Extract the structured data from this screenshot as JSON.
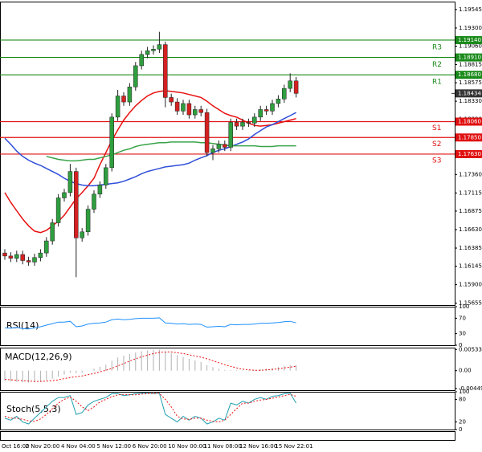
{
  "chart_data": [
    {
      "type": "candlestick",
      "categories": [
        "Oct 16:00",
        null,
        null,
        null,
        "2 Nov 20:00",
        null,
        null,
        null,
        null,
        null,
        "4 Nov 04:00",
        null,
        null,
        null,
        null,
        null,
        "5 Nov 12:00",
        null,
        null,
        null,
        null,
        null,
        "6 Nov 20:00",
        null,
        null,
        null,
        null,
        null,
        "10 Nov 00:00",
        null,
        null,
        null,
        null,
        null,
        "11 Nov 08:00",
        null,
        null,
        null,
        null,
        null,
        "12 Nov 16:00",
        null,
        null,
        null,
        null,
        null,
        "15 Nov 22:01",
        null,
        null,
        null
      ],
      "open": [
        1.1632,
        1.1628,
        1.1625,
        1.163,
        1.1622,
        1.162,
        1.1626,
        1.1632,
        1.1648,
        1.1672,
        1.1705,
        1.1712,
        1.174,
        1.1652,
        1.166,
        1.169,
        1.171,
        1.1722,
        1.1745,
        1.1812,
        1.184,
        1.1832,
        1.1852,
        1.188,
        1.1895,
        1.19,
        1.1902,
        1.1908,
        1.1838,
        1.1832,
        1.182,
        1.183,
        1.1815,
        1.1822,
        1.1818,
        1.1765,
        1.177,
        1.1776,
        1.1772,
        1.1805,
        1.18,
        1.1805,
        1.1804,
        1.1812,
        1.1822,
        1.182,
        1.183,
        1.1836,
        1.185,
        1.186
      ],
      "high": [
        1.1637,
        1.1633,
        1.1635,
        1.1635,
        1.1627,
        1.1631,
        1.1637,
        1.1653,
        1.1677,
        1.171,
        1.1717,
        1.175,
        1.1745,
        1.1665,
        1.1695,
        1.1715,
        1.1727,
        1.175,
        1.1817,
        1.1848,
        1.1845,
        1.1857,
        1.1885,
        1.19,
        1.1905,
        1.1907,
        1.1925,
        1.1912,
        1.1843,
        1.1837,
        1.1835,
        1.1835,
        1.1827,
        1.1827,
        1.1823,
        1.1775,
        1.1781,
        1.1781,
        1.181,
        1.181,
        1.181,
        1.181,
        1.1817,
        1.1827,
        1.1827,
        1.1835,
        1.1841,
        1.1855,
        1.187,
        1.1865
      ],
      "low": [
        1.1623,
        1.162,
        1.162,
        1.1617,
        1.1615,
        1.1615,
        1.1621,
        1.1627,
        1.1643,
        1.1667,
        1.17,
        1.1707,
        1.16,
        1.1647,
        1.1655,
        1.1685,
        1.1705,
        1.1717,
        1.174,
        1.1807,
        1.1827,
        1.1827,
        1.1847,
        1.1875,
        1.189,
        1.1895,
        1.1897,
        1.1825,
        1.1827,
        1.1815,
        1.1815,
        1.181,
        1.181,
        1.1813,
        1.176,
        1.1755,
        1.1765,
        1.1767,
        1.1767,
        1.1795,
        1.1795,
        1.1799,
        1.1799,
        1.1807,
        1.1815,
        1.1815,
        1.1825,
        1.1831,
        1.1845,
        1.1838
      ],
      "close": [
        1.1628,
        1.1625,
        1.163,
        1.1622,
        1.162,
        1.1626,
        1.1632,
        1.1648,
        1.1672,
        1.1705,
        1.1712,
        1.174,
        1.1652,
        1.166,
        1.169,
        1.171,
        1.1722,
        1.1745,
        1.1812,
        1.184,
        1.1832,
        1.1852,
        1.188,
        1.1895,
        1.19,
        1.1902,
        1.1908,
        1.1838,
        1.1832,
        1.182,
        1.183,
        1.1815,
        1.1822,
        1.1818,
        1.1765,
        1.177,
        1.1776,
        1.1772,
        1.1805,
        1.18,
        1.1805,
        1.1804,
        1.1812,
        1.1822,
        1.182,
        1.183,
        1.1836,
        1.185,
        1.186,
        1.18434
      ],
      "up_color": "#2e9e3e",
      "down_color": "#d42020",
      "series": [
        {
          "color": "#e81010",
          "values": [
            1.1712,
            1.1699,
            1.1688,
            1.1677,
            1.1668,
            1.1661,
            1.1659,
            1.1662,
            1.1668,
            1.1674,
            1.1682,
            1.1693,
            1.1704,
            1.1712,
            1.1721,
            1.1731,
            1.1749,
            1.1765,
            1.1781,
            1.1795,
            1.1808,
            1.1818,
            1.1827,
            1.1834,
            1.184,
            1.1844,
            1.1846,
            1.1847,
            1.1846,
            1.1845,
            1.1844,
            1.1842,
            1.184,
            1.1838,
            1.1833,
            1.1827,
            1.1822,
            1.1817,
            1.1814,
            1.1812,
            1.1808,
            1.1804,
            1.1801,
            1.18,
            1.1801,
            1.1802,
            1.1804,
            1.1806,
            1.1808,
            1.181
          ]
        },
        {
          "color": "#2f4fd8",
          "values": [
            1.1784,
            1.1776,
            1.1767,
            1.176,
            1.1755,
            1.1751,
            1.1748,
            1.1744,
            1.174,
            1.1736,
            1.1731,
            1.1727,
            1.1724,
            1.1722,
            1.1721,
            1.1721,
            1.1722,
            1.1723,
            1.1724,
            1.1725,
            1.1727,
            1.173,
            1.1733,
            1.1737,
            1.174,
            1.1742,
            1.1744,
            1.1746,
            1.1747,
            1.1748,
            1.1749,
            1.1751,
            1.1755,
            1.1758,
            1.1761,
            1.1765,
            1.1768,
            1.177,
            1.1773,
            1.1776,
            1.1779,
            1.1783,
            1.1789,
            1.1794,
            1.1799,
            1.1802,
            1.1806,
            1.181,
            1.1814,
            1.1818
          ]
        },
        {
          "color": "#3aa34a",
          "values": [
            null,
            null,
            null,
            null,
            null,
            null,
            null,
            1.176,
            1.1758,
            1.1756,
            1.1755,
            1.1754,
            1.1754,
            1.1755,
            1.1756,
            1.1756,
            1.1758,
            1.176,
            1.1762,
            1.1765,
            1.1768,
            1.177,
            1.1773,
            1.1775,
            1.1776,
            1.1777,
            1.1778,
            1.1778,
            1.1779,
            1.1779,
            1.1779,
            1.1779,
            1.1779,
            1.1778,
            1.1778,
            1.1777,
            1.1776,
            1.1775,
            1.1774,
            1.1774,
            1.1774,
            1.1774,
            1.1774,
            1.1773,
            1.1773,
            1.1773,
            1.1774,
            1.1774,
            1.1774,
            1.1774
          ]
        }
      ],
      "levels": [
        {
          "name": "R3",
          "value": 1.1914,
          "label": "1.19140",
          "color": "#1a8a1a"
        },
        {
          "name": "R2",
          "value": 1.1891,
          "label": "1.18910",
          "color": "#1a8a1a"
        },
        {
          "name": "R1",
          "value": 1.1868,
          "label": "1.18680",
          "color": "#1a8a1a"
        },
        {
          "name": "S1",
          "value": 1.1806,
          "label": "1.18060",
          "color": "#e01010"
        },
        {
          "name": "S2",
          "value": 1.1785,
          "label": "1.17850",
          "color": "#e01010"
        },
        {
          "name": "S3",
          "value": 1.1763,
          "label": "1.17630",
          "color": "#e01010"
        }
      ],
      "last": 1.18434,
      "ylim": [
        1.1563,
        1.1965
      ],
      "yticks": [
        1.19545,
        {
          "value": 1.193,
          "label": "1.19300"
        },
        {
          "value": 1.1906,
          "label": "1.19060"
        },
        1.18815,
        1.18575,
        {
          "value": 1.1833,
          "label": "1.18330"
        },
        {
          "value": 1.1809,
          "label": "1.18090"
        },
        1.17845,
        {
          "value": 1.176,
          "label": "1.17600"
        },
        {
          "value": 1.1736,
          "label": "1.17360"
        },
        1.17115,
        1.16875,
        {
          "value": 1.1663,
          "label": "1.16630"
        },
        1.16385,
        1.16145,
        {
          "value": 1.159,
          "label": "1.15900"
        },
        1.15655
      ]
    },
    {
      "type": "line",
      "title": "RSI(14)",
      "ylim": [
        0,
        100
      ],
      "yticks": [
        100,
        70,
        30,
        0
      ],
      "series": [
        {
          "color": "#1e90ff",
          "values": [
            45,
            44,
            46,
            43,
            42,
            45,
            48,
            52,
            56,
            60,
            60,
            62,
            48,
            50,
            55,
            57,
            58,
            60,
            66,
            68,
            66,
            67,
            69,
            70,
            70,
            70,
            71,
            58,
            57,
            55,
            56,
            54,
            55,
            54,
            47,
            48,
            49,
            48,
            54,
            53,
            54,
            54,
            55,
            57,
            57,
            58,
            59,
            61,
            62,
            58
          ]
        }
      ]
    },
    {
      "type": "bar",
      "title": "MACD(12,26,9)",
      "ylim": [
        -0.0049,
        0.0058
      ],
      "yticks": [
        0.005338,
        {
          "value": 0,
          "label": "0.00"
        },
        -0.004497
      ],
      "color": "#b0b0b0",
      "values": [
        -0.0025,
        -0.0027,
        -0.0028,
        -0.0029,
        -0.003,
        -0.0029,
        -0.0027,
        -0.0024,
        -0.002,
        -0.0015,
        -0.001,
        -0.0005,
        -0.0006,
        -0.0005,
        0,
        0.0005,
        0.001,
        0.0015,
        0.0025,
        0.0033,
        0.0038,
        0.0042,
        0.0046,
        0.0049,
        0.0051,
        0.0052,
        0.0053,
        0.0048,
        0.0044,
        0.0039,
        0.0035,
        0.003,
        0.0026,
        0.0022,
        0.0014,
        0.0009,
        0.0005,
        0.0002,
        0.0002,
        0.0001,
        0.0001,
        0.0001,
        0.0002,
        0.0004,
        0.0005,
        0.0007,
        0.0009,
        0.0012,
        0.0014,
        0.0014
      ],
      "series": [
        {
          "color": "#e81010",
          "dashed": true,
          "values": [
            -0.0022,
            -0.0023,
            -0.0024,
            -0.0025,
            -0.0026,
            -0.0027,
            -0.0027,
            -0.0026,
            -0.0025,
            -0.0023,
            -0.002,
            -0.0017,
            -0.0015,
            -0.0013,
            -0.001,
            -0.0007,
            -0.0003,
            0.0001,
            0.0006,
            0.0012,
            0.0018,
            0.0024,
            0.003,
            0.0035,
            0.0039,
            0.0043,
            0.0046,
            0.0047,
            0.0047,
            0.0045,
            0.0043,
            0.004,
            0.0037,
            0.0034,
            0.003,
            0.0025,
            0.002,
            0.0015,
            0.0011,
            0.0007,
            0.0004,
            0.0002,
            0.0001,
            0.0001,
            0.0002,
            0.0003,
            0.0005,
            0.0007,
            0.0009,
            0.0011
          ]
        }
      ]
    },
    {
      "type": "line",
      "title": "Stoch(5,5,3)",
      "ylim": [
        0,
        100
      ],
      "yticks": [
        100,
        80,
        20,
        0
      ],
      "series": [
        {
          "color": "#20a0b0",
          "values": [
            30,
            25,
            35,
            20,
            15,
            30,
            45,
            60,
            75,
            85,
            85,
            90,
            40,
            45,
            65,
            75,
            80,
            85,
            95,
            95,
            90,
            92,
            95,
            96,
            96,
            95,
            96,
            40,
            30,
            20,
            35,
            25,
            35,
            30,
            15,
            20,
            30,
            25,
            70,
            65,
            75,
            70,
            80,
            85,
            80,
            88,
            90,
            95,
            96,
            70
          ]
        },
        {
          "color": "#e81010",
          "dashed": true,
          "values": [
            35,
            30,
            30,
            27,
            23,
            22,
            28,
            40,
            55,
            70,
            80,
            86,
            75,
            60,
            50,
            60,
            73,
            80,
            87,
            92,
            93,
            92,
            92,
            94,
            95,
            96,
            96,
            80,
            60,
            35,
            28,
            27,
            30,
            30,
            25,
            22,
            20,
            25,
            40,
            55,
            70,
            70,
            75,
            78,
            80,
            83,
            86,
            90,
            93,
            88
          ]
        }
      ]
    }
  ]
}
